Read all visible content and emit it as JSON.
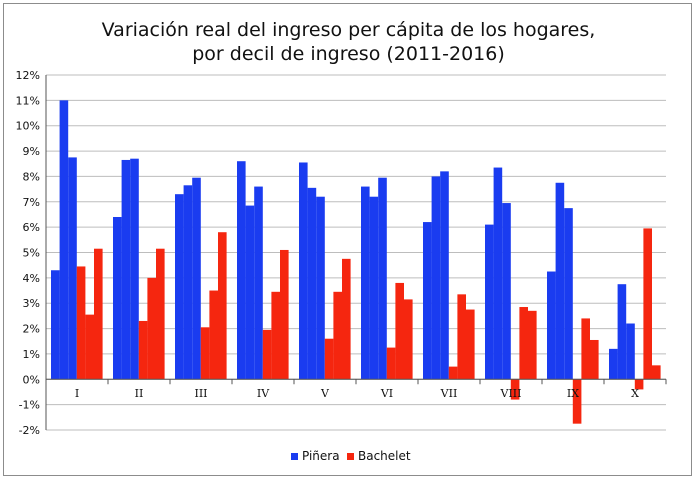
{
  "chart_data": {
    "type": "bar",
    "title": [
      "Variación real del ingreso per cápita de los hogares,",
      "por decil de ingreso (2011-2016)"
    ],
    "categories": [
      "I",
      "II",
      "III",
      "IV",
      "V",
      "VI",
      "VII",
      "VIII",
      "IX",
      "X"
    ],
    "series": [
      {
        "name": "Piñera",
        "color": "#1a3cf0",
        "values": [
          [
            4.3,
            11.0,
            8.75
          ],
          [
            6.4,
            8.65,
            8.7
          ],
          [
            7.3,
            7.65,
            7.95
          ],
          [
            8.6,
            6.85,
            7.6
          ],
          [
            8.55,
            7.55,
            7.2
          ],
          [
            7.6,
            7.2,
            7.95
          ],
          [
            6.2,
            8.0,
            8.2
          ],
          [
            6.1,
            8.35,
            6.95
          ],
          [
            4.25,
            7.75,
            6.75
          ],
          [
            1.2,
            3.75,
            2.2
          ]
        ]
      },
      {
        "name": "Bachelet",
        "color": "#f5260f",
        "values": [
          [
            4.45,
            2.55,
            5.15
          ],
          [
            2.3,
            4.0,
            5.15
          ],
          [
            2.05,
            3.5,
            5.8
          ],
          [
            1.95,
            3.45,
            5.1
          ],
          [
            1.6,
            3.45,
            4.75
          ],
          [
            1.25,
            3.8,
            3.15
          ],
          [
            0.5,
            3.35,
            2.75
          ],
          [
            -0.8,
            2.85,
            2.7
          ],
          [
            -1.75,
            2.4,
            1.55
          ],
          [
            -0.4,
            5.95,
            0.55
          ]
        ]
      }
    ],
    "ylim": [
      -2,
      12
    ],
    "yticks": [
      "-2%",
      "-1%",
      "0%",
      "1%",
      "2%",
      "3%",
      "4%",
      "5%",
      "6%",
      "7%",
      "8%",
      "9%",
      "10%",
      "11%",
      "12%"
    ],
    "grid": true,
    "legend_position": "bottom"
  }
}
